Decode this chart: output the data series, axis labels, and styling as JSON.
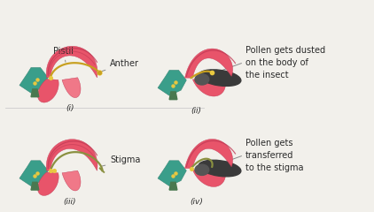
{
  "bg_color": "#f2f0eb",
  "labels": {
    "pistil": "Pistil",
    "anther": "Anther",
    "stigma": "Stigma",
    "pollen_dust": "Pollen gets dusted\non the body of\nthe insect",
    "pollen_transfer": "Pollen gets\ntransferred\nto the stigma",
    "panel_i": "(i)",
    "panel_ii": "(ii)",
    "panel_iii": "(iii)",
    "panel_iv": "(iv)"
  },
  "colors": {
    "pink_main": "#e8546a",
    "pink_dark": "#c23a55",
    "pink_light": "#f07888",
    "teal": "#3a9e8a",
    "teal_dark": "#2a7a6a",
    "dark_gray": "#3a3a3a",
    "gray_insect": "#555555",
    "yellow": "#c8a020",
    "yellow_light": "#e8c840",
    "green_stem": "#4a7850",
    "olive": "#8a9040",
    "text": "#2a2a2a",
    "line": "#888888",
    "white": "#ffffff"
  },
  "font_size_label": 7.0,
  "font_size_panel": 6.5,
  "figsize": [
    4.22,
    2.4
  ],
  "dpi": 100
}
